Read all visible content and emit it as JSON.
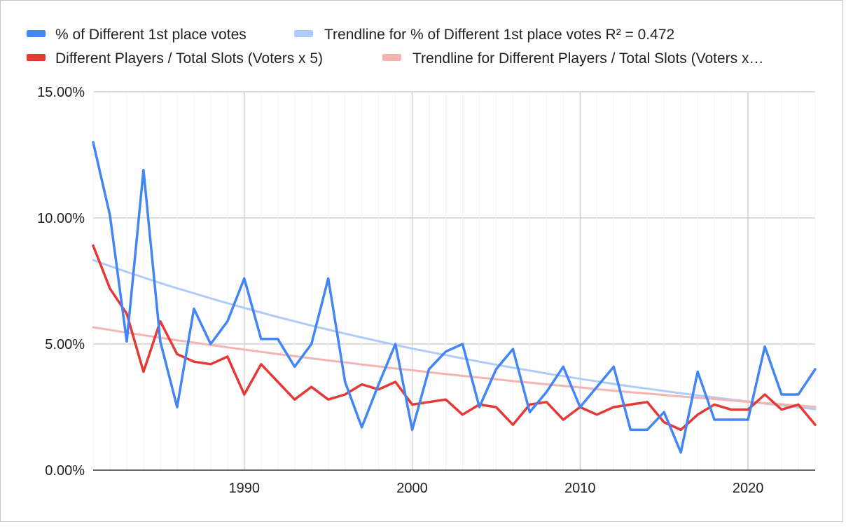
{
  "chart_data": {
    "type": "line",
    "x": [
      1981,
      1982,
      1983,
      1984,
      1985,
      1986,
      1987,
      1988,
      1989,
      1990,
      1991,
      1992,
      1993,
      1994,
      1995,
      1996,
      1997,
      1998,
      1999,
      2000,
      2001,
      2002,
      2003,
      2004,
      2005,
      2006,
      2007,
      2008,
      2009,
      2010,
      2011,
      2012,
      2013,
      2014,
      2015,
      2016,
      2017,
      2018,
      2019,
      2020,
      2021,
      2022,
      2023,
      2024
    ],
    "xlim": [
      1981,
      2024
    ],
    "ylim": [
      0,
      15
    ],
    "y_ticks": [
      {
        "value": 0,
        "label": "0.00%"
      },
      {
        "value": 5,
        "label": "5.00%"
      },
      {
        "value": 10,
        "label": "10.00%"
      },
      {
        "value": 15,
        "label": "15.00%"
      }
    ],
    "x_ticks": [
      {
        "value": 1990,
        "label": "1990"
      },
      {
        "value": 2000,
        "label": "2000"
      },
      {
        "value": 2010,
        "label": "2010"
      },
      {
        "value": 2020,
        "label": "2020"
      }
    ],
    "grid": true,
    "legend_position": "top",
    "series": [
      {
        "name": "% of Different 1st place votes",
        "color": "#4285f4",
        "values": [
          13.0,
          10.1,
          5.1,
          11.9,
          5.1,
          2.5,
          6.4,
          5.0,
          5.9,
          7.6,
          5.2,
          5.2,
          4.1,
          5.0,
          7.6,
          3.5,
          1.7,
          3.4,
          5.0,
          1.6,
          4.0,
          4.7,
          5.0,
          2.5,
          4.0,
          4.8,
          2.3,
          3.1,
          4.1,
          2.5,
          3.3,
          4.1,
          1.6,
          1.6,
          2.3,
          0.7,
          3.9,
          2.0,
          2.0,
          2.0,
          4.9,
          3.0,
          3.0,
          4.0
        ]
      },
      {
        "name": "Trendline for % of Different 1st place votes R² = 0.472",
        "color": "#aecbfa",
        "trendline": true,
        "values": [
          8.33,
          8.09,
          7.86,
          7.64,
          7.42,
          7.21,
          7.01,
          6.81,
          6.62,
          6.43,
          6.25,
          6.07,
          5.9,
          5.73,
          5.57,
          5.41,
          5.26,
          5.11,
          4.96,
          4.82,
          4.69,
          4.56,
          4.43,
          4.3,
          4.18,
          4.06,
          3.95,
          3.83,
          3.73,
          3.62,
          3.52,
          3.42,
          3.32,
          3.23,
          3.14,
          3.05,
          2.96,
          2.88,
          2.8,
          2.72,
          2.64,
          2.57,
          2.49,
          2.42
        ]
      },
      {
        "name": "Different Players / Total Slots (Voters x 5)",
        "color": "#e53935",
        "values": [
          8.9,
          7.2,
          6.2,
          3.9,
          5.9,
          4.6,
          4.3,
          4.2,
          4.5,
          3.0,
          4.2,
          3.5,
          2.8,
          3.3,
          2.8,
          3.0,
          3.4,
          3.2,
          3.5,
          2.6,
          2.7,
          2.8,
          2.2,
          2.6,
          2.5,
          1.8,
          2.6,
          2.7,
          2.0,
          2.5,
          2.2,
          2.5,
          2.6,
          2.7,
          1.9,
          1.6,
          2.2,
          2.6,
          2.4,
          2.4,
          3.0,
          2.4,
          2.6,
          1.8
        ]
      },
      {
        "name": "Trendline for Different Players / Total Slots (Voters x…",
        "color": "#f4b4b0",
        "trendline": true,
        "values": [
          5.66,
          5.56,
          5.45,
          5.35,
          5.25,
          5.15,
          5.06,
          4.96,
          4.87,
          4.78,
          4.69,
          4.6,
          4.52,
          4.43,
          4.35,
          4.27,
          4.19,
          4.11,
          4.03,
          3.96,
          3.88,
          3.81,
          3.74,
          3.67,
          3.6,
          3.53,
          3.47,
          3.4,
          3.34,
          3.28,
          3.21,
          3.15,
          3.09,
          3.04,
          2.98,
          2.92,
          2.87,
          2.82,
          2.76,
          2.71,
          2.66,
          2.61,
          2.56,
          2.51
        ]
      }
    ]
  }
}
